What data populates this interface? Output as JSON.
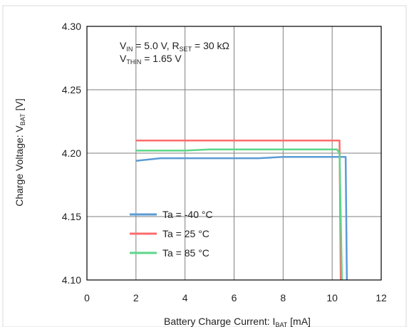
{
  "chart_data": {
    "type": "line",
    "xlabel": "Battery Charge Current: I",
    "xlabel_sub": "BAT",
    "xlabel_tail": " [mA]",
    "ylabel": "Charge Voltage: V",
    "ylabel_sub": "BAT",
    "ylabel_tail": " [V]",
    "xlim": [
      0,
      12
    ],
    "ylim": [
      4.1,
      4.3
    ],
    "x_ticks": [
      "0",
      "2",
      "4",
      "6",
      "8",
      "10",
      "12"
    ],
    "x_tick_values": [
      0,
      2,
      4,
      6,
      8,
      10,
      12
    ],
    "y_ticks": [
      "4.10",
      "4.15",
      "4.20",
      "4.25",
      "4.30"
    ],
    "y_tick_values": [
      4.1,
      4.15,
      4.2,
      4.25,
      4.3
    ],
    "grid": true,
    "annotation": {
      "line1": {
        "a": "V",
        "a_sub": "IN",
        "b": " = 5.0 V, R",
        "b_sub": "SET",
        "c": " = 30 kΩ"
      },
      "line2": {
        "a": "V",
        "a_sub": "THIN",
        "b": " = 1.65 V"
      }
    },
    "legend_position": "lower-left",
    "series": [
      {
        "name": "Ta =  -40 °C",
        "color": "#5b9bd5",
        "x": [
          2,
          3,
          5,
          7,
          8,
          9,
          10,
          10.4,
          10.45,
          10.55,
          10.6
        ],
        "y": [
          4.194,
          4.196,
          4.196,
          4.196,
          4.197,
          4.197,
          4.197,
          4.197,
          4.197,
          4.197,
          4.1
        ]
      },
      {
        "name": "Ta =  25 °C",
        "color": "#ff6b6b",
        "x": [
          2,
          4,
          6,
          8,
          10,
          10.3,
          10.35
        ],
        "y": [
          4.21,
          4.21,
          4.21,
          4.21,
          4.21,
          4.21,
          4.1
        ]
      },
      {
        "name": "Ta =  85 °C",
        "color": "#5cd68a",
        "x": [
          2,
          4,
          5,
          7,
          9,
          10.2,
          10.3,
          10.4
        ],
        "y": [
          4.202,
          4.202,
          4.203,
          4.203,
          4.203,
          4.203,
          4.2,
          4.1
        ]
      }
    ]
  }
}
